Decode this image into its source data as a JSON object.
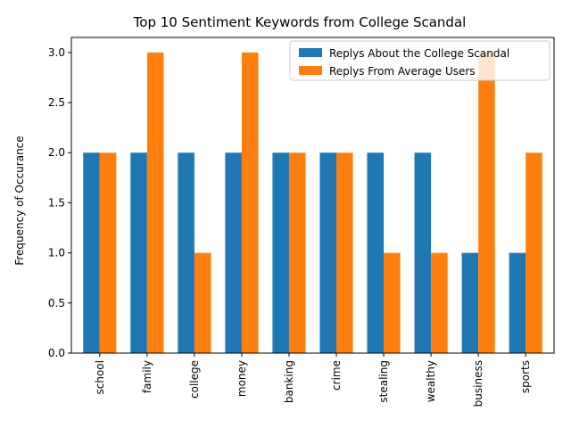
{
  "chart_data": {
    "type": "bar",
    "title": "Top 10 Sentiment Keywords from College Scandal",
    "xlabel": "",
    "ylabel": "Frequency of Occurance",
    "categories": [
      "school",
      "family",
      "college",
      "money",
      "banking",
      "crime",
      "stealing",
      "wealthy",
      "business",
      "sports"
    ],
    "series": [
      {
        "name": "Replys About the College Scandal",
        "color": "#1f77b4",
        "values": [
          2,
          2,
          2,
          2,
          2,
          2,
          2,
          2,
          1,
          1
        ]
      },
      {
        "name": "Replys From Average Users",
        "color": "#ff7f0e",
        "values": [
          2,
          3,
          1,
          3,
          2,
          2,
          1,
          1,
          3,
          2
        ]
      }
    ],
    "ylim": [
      0,
      3.15
    ],
    "yticks": [
      0.0,
      0.5,
      1.0,
      1.5,
      2.0,
      2.5,
      3.0
    ],
    "ytick_labels": [
      "0.0",
      "0.5",
      "1.0",
      "1.5",
      "2.0",
      "2.5",
      "3.0"
    ],
    "legend_position": "top-right",
    "grid": false
  }
}
